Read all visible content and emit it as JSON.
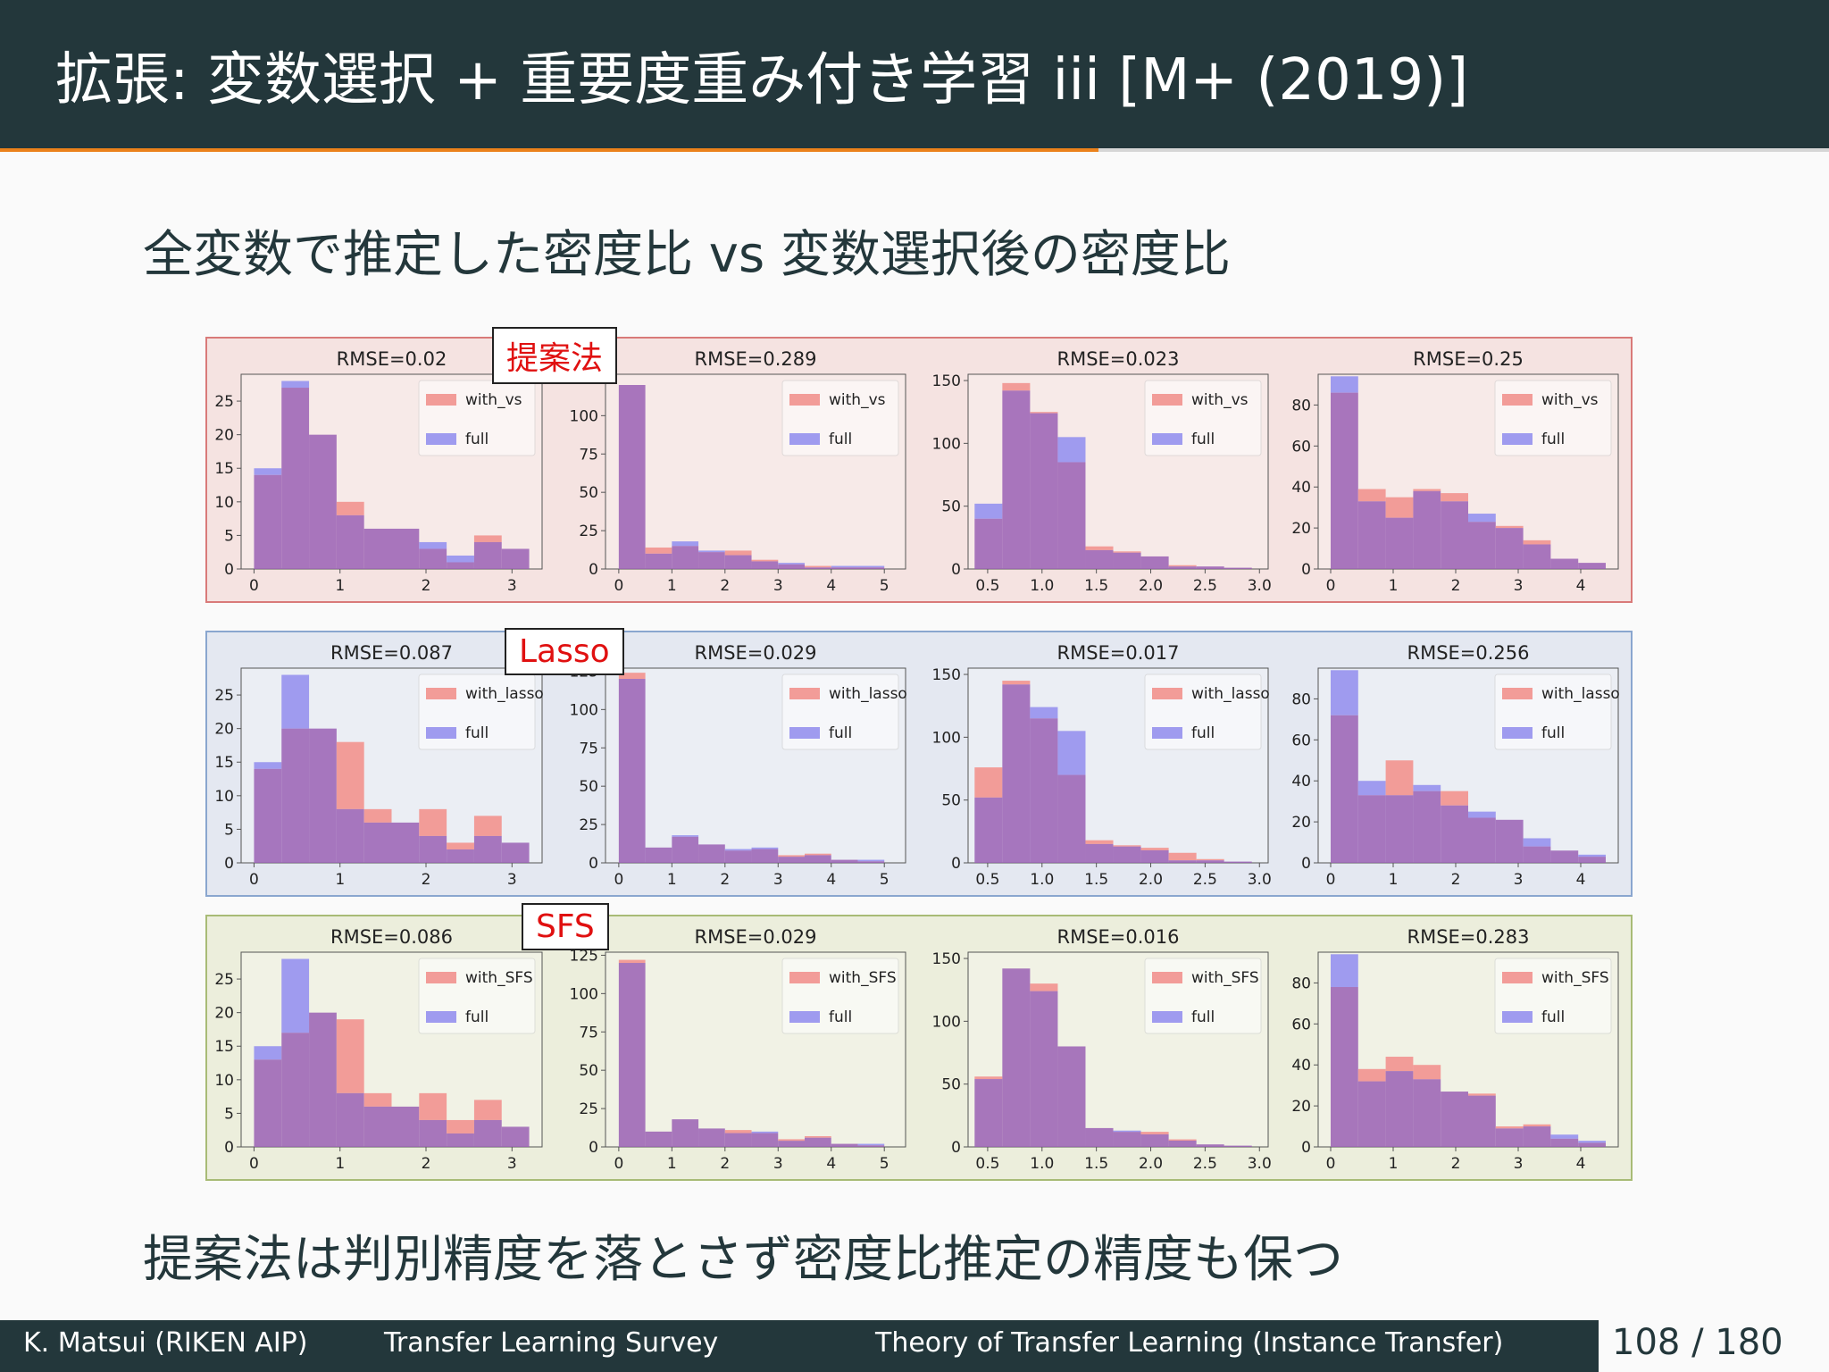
{
  "slide": {
    "title": "拡張: 変数選択 + 重要度重み付き学習 iii [M+ (2019)]",
    "subtitle": "全変数で推定した密度比 vs 変数選択後の密度比",
    "conclusion": "提案法は判別精度を落とさず密度比推定の精度も保つ"
  },
  "footer": {
    "author": "K. Matsui (RIKEN AIP)",
    "talk": "Transfer Learning Survey",
    "section": "Theory of Transfer Learning (Instance Transfer)",
    "page": "108",
    "sep": "/",
    "total": "180"
  },
  "colors": {
    "title_bg": "#23373b",
    "accent": "#eb811b",
    "tag_text": "#e01010",
    "with_color": "#f29c98",
    "full_color": "#9f9bef",
    "overlap_color": "#9a60b4"
  },
  "chart_data": [
    {
      "type": "bar",
      "method": "提案法",
      "tag": "提案法",
      "with_label": "with_vs",
      "charts": [
        {
          "title": "RMSE=0.02",
          "xlim": [
            -0.15,
            3.35
          ],
          "ylim": [
            0,
            29
          ],
          "xticks": [
            "0",
            "1",
            "2",
            "3"
          ],
          "yticks": [
            "0",
            "5",
            "10",
            "15",
            "20",
            "25"
          ],
          "bin_start": 0,
          "bin_width": 0.32,
          "with": [
            14,
            27,
            20,
            10,
            6,
            6,
            3,
            1,
            5,
            3
          ],
          "full": [
            15,
            28,
            20,
            8,
            6,
            6,
            4,
            2,
            4,
            3
          ]
        },
        {
          "title": "RMSE=0.289",
          "xlim": [
            -0.25,
            5.4
          ],
          "ylim": [
            0,
            127
          ],
          "xticks": [
            "0",
            "1",
            "2",
            "3",
            "4",
            "5"
          ],
          "yticks": [
            "0",
            "25",
            "50",
            "75",
            "100",
            "125"
          ],
          "bin_start": 0,
          "bin_width": 0.5,
          "with": [
            120,
            14,
            15,
            11,
            12,
            6,
            3,
            2,
            1,
            1
          ],
          "full": [
            120,
            10,
            18,
            12,
            9,
            5,
            4,
            1,
            2,
            2
          ]
        },
        {
          "title": "RMSE=0.023",
          "xlim": [
            0.32,
            3.08
          ],
          "ylim": [
            0,
            155
          ],
          "xticks": [
            "0.5",
            "1.0",
            "1.5",
            "2.0",
            "2.5",
            "3.0"
          ],
          "yticks": [
            "0",
            "50",
            "100",
            "150"
          ],
          "bin_start": 0.38,
          "bin_width": 0.255,
          "with": [
            40,
            148,
            125,
            85,
            18,
            14,
            10,
            3,
            2,
            1
          ],
          "full": [
            52,
            142,
            124,
            105,
            15,
            13,
            10,
            2,
            2,
            1
          ]
        },
        {
          "title": "RMSE=0.25",
          "xlim": [
            -0.2,
            4.6
          ],
          "ylim": [
            0,
            95
          ],
          "xticks": [
            "0",
            "1",
            "2",
            "3",
            "4"
          ],
          "yticks": [
            "0",
            "20",
            "40",
            "60",
            "80"
          ],
          "bin_start": 0,
          "bin_width": 0.44,
          "with": [
            86,
            39,
            35,
            39,
            37,
            23,
            21,
            14,
            5,
            3
          ],
          "full": [
            94,
            33,
            25,
            38,
            33,
            27,
            20,
            12,
            5,
            3
          ]
        }
      ]
    },
    {
      "type": "bar",
      "method": "Lasso",
      "tag": "Lasso",
      "with_label": "with_lasso",
      "charts": [
        {
          "title": "RMSE=0.087",
          "xlim": [
            -0.15,
            3.35
          ],
          "ylim": [
            0,
            29
          ],
          "xticks": [
            "0",
            "1",
            "2",
            "3"
          ],
          "yticks": [
            "0",
            "5",
            "10",
            "15",
            "20",
            "25"
          ],
          "bin_start": 0,
          "bin_width": 0.32,
          "with": [
            14,
            20,
            20,
            18,
            8,
            6,
            8,
            3,
            7,
            3
          ],
          "full": [
            15,
            28,
            20,
            8,
            6,
            6,
            4,
            2,
            4,
            3
          ]
        },
        {
          "title": "RMSE=0.029",
          "xlim": [
            -0.25,
            5.4
          ],
          "ylim": [
            0,
            127
          ],
          "xticks": [
            "0",
            "1",
            "2",
            "3",
            "4",
            "5"
          ],
          "yticks": [
            "0",
            "25",
            "50",
            "75",
            "100",
            "125"
          ],
          "bin_start": 0,
          "bin_width": 0.5,
          "with": [
            124,
            10,
            17,
            12,
            8,
            9,
            5,
            6,
            2,
            1
          ],
          "full": [
            120,
            10,
            18,
            12,
            9,
            10,
            4,
            5,
            2,
            2
          ]
        },
        {
          "title": "RMSE=0.017",
          "xlim": [
            0.32,
            3.08
          ],
          "ylim": [
            0,
            155
          ],
          "xticks": [
            "0.5",
            "1.0",
            "1.5",
            "2.0",
            "2.5",
            "3.0"
          ],
          "yticks": [
            "0",
            "50",
            "100",
            "150"
          ],
          "bin_start": 0.38,
          "bin_width": 0.255,
          "with": [
            76,
            145,
            115,
            70,
            18,
            14,
            12,
            8,
            3,
            1
          ],
          "full": [
            52,
            142,
            124,
            105,
            15,
            13,
            10,
            2,
            2,
            1
          ]
        },
        {
          "title": "RMSE=0.256",
          "xlim": [
            -0.2,
            4.6
          ],
          "ylim": [
            0,
            95
          ],
          "xticks": [
            "0",
            "1",
            "2",
            "3",
            "4"
          ],
          "yticks": [
            "0",
            "20",
            "40",
            "60",
            "80"
          ],
          "bin_start": 0,
          "bin_width": 0.44,
          "with": [
            72,
            33,
            50,
            35,
            35,
            22,
            21,
            8,
            6,
            3
          ],
          "full": [
            94,
            40,
            33,
            38,
            28,
            25,
            21,
            12,
            6,
            4
          ]
        }
      ]
    },
    {
      "type": "bar",
      "method": "SFS",
      "tag": "SFS",
      "with_label": "with_SFS",
      "charts": [
        {
          "title": "RMSE=0.086",
          "xlim": [
            -0.15,
            3.35
          ],
          "ylim": [
            0,
            29
          ],
          "xticks": [
            "0",
            "1",
            "2",
            "3"
          ],
          "yticks": [
            "0",
            "5",
            "10",
            "15",
            "20",
            "25"
          ],
          "bin_start": 0,
          "bin_width": 0.32,
          "with": [
            13,
            17,
            20,
            19,
            8,
            6,
            8,
            4,
            7,
            3
          ],
          "full": [
            15,
            28,
            20,
            8,
            6,
            6,
            4,
            2,
            4,
            3
          ]
        },
        {
          "title": "RMSE=0.029",
          "xlim": [
            -0.25,
            5.4
          ],
          "ylim": [
            0,
            127
          ],
          "xticks": [
            "0",
            "1",
            "2",
            "3",
            "4",
            "5"
          ],
          "yticks": [
            "0",
            "25",
            "50",
            "75",
            "100",
            "125"
          ],
          "bin_start": 0,
          "bin_width": 0.5,
          "with": [
            122,
            10,
            18,
            12,
            11,
            9,
            5,
            7,
            2,
            1
          ],
          "full": [
            120,
            10,
            18,
            12,
            9,
            10,
            4,
            6,
            2,
            2
          ]
        },
        {
          "title": "RMSE=0.016",
          "xlim": [
            0.32,
            3.08
          ],
          "ylim": [
            0,
            155
          ],
          "xticks": [
            "0.5",
            "1.0",
            "1.5",
            "2.0",
            "2.5",
            "3.0"
          ],
          "yticks": [
            "0",
            "50",
            "100",
            "150"
          ],
          "bin_start": 0.38,
          "bin_width": 0.255,
          "with": [
            56,
            142,
            130,
            80,
            15,
            12,
            12,
            6,
            2,
            1
          ],
          "full": [
            54,
            142,
            124,
            80,
            15,
            13,
            10,
            5,
            2,
            1
          ]
        },
        {
          "title": "RMSE=0.283",
          "xlim": [
            -0.2,
            4.6
          ],
          "ylim": [
            0,
            95
          ],
          "xticks": [
            "0",
            "1",
            "2",
            "3",
            "4"
          ],
          "yticks": [
            "0",
            "20",
            "40",
            "60",
            "80"
          ],
          "bin_start": 0,
          "bin_width": 0.44,
          "with": [
            78,
            38,
            44,
            40,
            27,
            26,
            10,
            11,
            4,
            2
          ],
          "full": [
            94,
            32,
            37,
            33,
            27,
            25,
            9,
            10,
            6,
            3
          ]
        }
      ]
    }
  ]
}
